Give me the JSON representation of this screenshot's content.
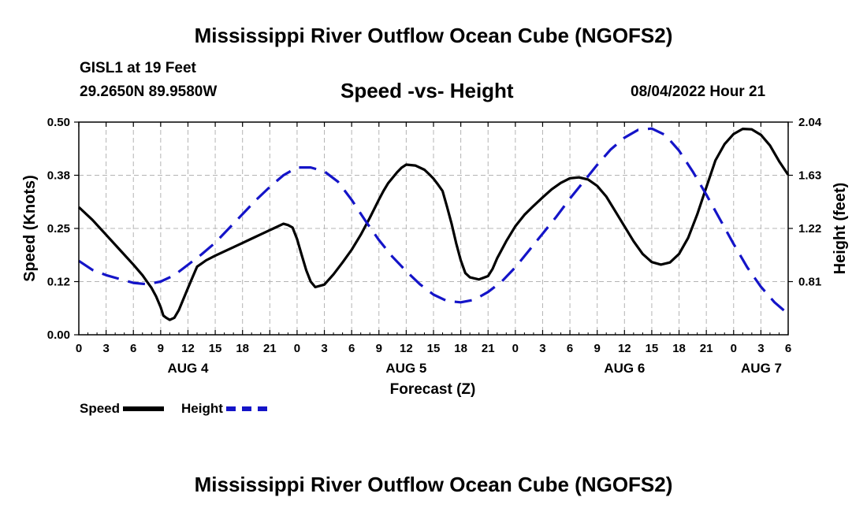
{
  "page": {
    "title": "Mississippi River Outflow Ocean Cube (NGOFS2)",
    "station": "GISL1 at 19 Feet",
    "coords": "29.2650N  89.9580W",
    "subtitle": "Speed -vs- Height",
    "datetime": "08/04/2022 Hour 21",
    "bottom_title": "Mississippi River Outflow Ocean Cube (NGOFS2)"
  },
  "legend": {
    "speed_label": "Speed",
    "height_label": "Height"
  },
  "colors": {
    "speed": "#000000",
    "height": "#1414c8",
    "grid": "#b4b4b4"
  },
  "chart_data": {
    "type": "line",
    "xlabel": "Forecast (Z)",
    "ylabel": "Speed (Knots)",
    "y2label": "Height (feet)",
    "x_unit": "hours from 2022-08-04 00Z",
    "xlim": [
      0,
      78
    ],
    "ylim": [
      0,
      0.5
    ],
    "y2lim": [
      0.4,
      2.04
    ],
    "x_ticks": [
      0,
      3,
      6,
      9,
      12,
      15,
      18,
      21,
      24,
      27,
      30,
      33,
      36,
      39,
      42,
      45,
      48,
      51,
      54,
      57,
      60,
      63,
      66,
      69,
      72,
      75,
      78
    ],
    "x_tick_labels": [
      "0",
      "3",
      "6",
      "9",
      "12",
      "15",
      "18",
      "21",
      "0",
      "3",
      "6",
      "9",
      "12",
      "15",
      "18",
      "21",
      "0",
      "3",
      "6",
      "9",
      "12",
      "15",
      "18",
      "21",
      "0",
      "3",
      "6"
    ],
    "day_labels": [
      {
        "label": "AUG 4",
        "x": 12
      },
      {
        "label": "AUG 5",
        "x": 36
      },
      {
        "label": "AUG 6",
        "x": 60
      },
      {
        "label": "AUG 7",
        "x": 84
      }
    ],
    "y_ticks": [
      0,
      0.125,
      0.25,
      0.375,
      0.5
    ],
    "y_tick_labels": [
      "0.00",
      "0.12",
      "0.25",
      "0.38",
      "0.50"
    ],
    "y2_ticks": [
      0.81,
      1.22,
      1.63,
      2.04
    ],
    "y2_tick_labels": [
      "0.81",
      "1.22",
      "1.63",
      "2.04"
    ],
    "grid": true,
    "series": [
      {
        "name": "Speed",
        "axis": "left",
        "style": "solid",
        "x": [
          0,
          1.5,
          3,
          4.5,
          6,
          7,
          7.5,
          8,
          8.5,
          9,
          9.3,
          9.6,
          10,
          10.5,
          11,
          12,
          12.5,
          13,
          14,
          15,
          16,
          17,
          18,
          19,
          20,
          21,
          21.5,
          22,
          22.5,
          23,
          23.5,
          24,
          24.5,
          25,
          25.5,
          26,
          27,
          28,
          29,
          30,
          31,
          32,
          33,
          33.5,
          34,
          35,
          35.5,
          36,
          37,
          38,
          38.5,
          39,
          39.5,
          40,
          40.5,
          41,
          41.5,
          42,
          42.5,
          43,
          44,
          45,
          45.5,
          46,
          47,
          48,
          49,
          50,
          51,
          52,
          53,
          54,
          55,
          56,
          57,
          58,
          59,
          60,
          61,
          62,
          63,
          64,
          65,
          66,
          67,
          68,
          69,
          70,
          71,
          72,
          73,
          74,
          75,
          76,
          77,
          78
        ],
        "y": [
          0.3,
          0.27,
          0.235,
          0.2,
          0.165,
          0.14,
          0.125,
          0.11,
          0.09,
          0.065,
          0.045,
          0.04,
          0.035,
          0.04,
          0.058,
          0.11,
          0.135,
          0.16,
          0.175,
          0.186,
          0.196,
          0.206,
          0.216,
          0.226,
          0.236,
          0.246,
          0.251,
          0.256,
          0.261,
          0.258,
          0.252,
          0.225,
          0.188,
          0.152,
          0.125,
          0.112,
          0.118,
          0.142,
          0.17,
          0.2,
          0.235,
          0.275,
          0.318,
          0.338,
          0.356,
          0.382,
          0.393,
          0.4,
          0.398,
          0.388,
          0.378,
          0.367,
          0.353,
          0.338,
          0.3,
          0.26,
          0.215,
          0.175,
          0.145,
          0.135,
          0.13,
          0.138,
          0.155,
          0.18,
          0.22,
          0.255,
          0.282,
          0.303,
          0.323,
          0.342,
          0.357,
          0.368,
          0.37,
          0.365,
          0.35,
          0.325,
          0.29,
          0.255,
          0.22,
          0.19,
          0.171,
          0.165,
          0.17,
          0.19,
          0.228,
          0.283,
          0.347,
          0.41,
          0.448,
          0.472,
          0.484,
          0.483,
          0.47,
          0.445,
          0.408,
          0.376
        ]
      },
      {
        "name": "Height",
        "axis": "right",
        "style": "dashed",
        "x": [
          0,
          1.5,
          3,
          4.5,
          6,
          7.5,
          9,
          10.5,
          12,
          13.5,
          15,
          16.5,
          18,
          19.5,
          21,
          22.5,
          24,
          25.5,
          27,
          28.5,
          30,
          31.5,
          33,
          34.5,
          36,
          37.5,
          39,
          40.5,
          42,
          43.5,
          45,
          46.5,
          48,
          49.5,
          51,
          52.5,
          54,
          55.5,
          57,
          58.5,
          60,
          61.5,
          63,
          64.5,
          66,
          67.5,
          69,
          70.5,
          72,
          73.5,
          75,
          76.5,
          78
        ],
        "y": [
          0.97,
          0.9,
          0.86,
          0.83,
          0.8,
          0.79,
          0.81,
          0.86,
          0.94,
          1.02,
          1.11,
          1.22,
          1.33,
          1.44,
          1.54,
          1.63,
          1.69,
          1.69,
          1.66,
          1.58,
          1.44,
          1.28,
          1.13,
          1.0,
          0.89,
          0.79,
          0.71,
          0.66,
          0.65,
          0.67,
          0.73,
          0.81,
          0.92,
          1.05,
          1.18,
          1.31,
          1.45,
          1.58,
          1.71,
          1.83,
          1.92,
          1.98,
          1.99,
          1.94,
          1.82,
          1.66,
          1.48,
          1.29,
          1.1,
          0.92,
          0.77,
          0.65,
          0.56
        ]
      }
    ]
  }
}
